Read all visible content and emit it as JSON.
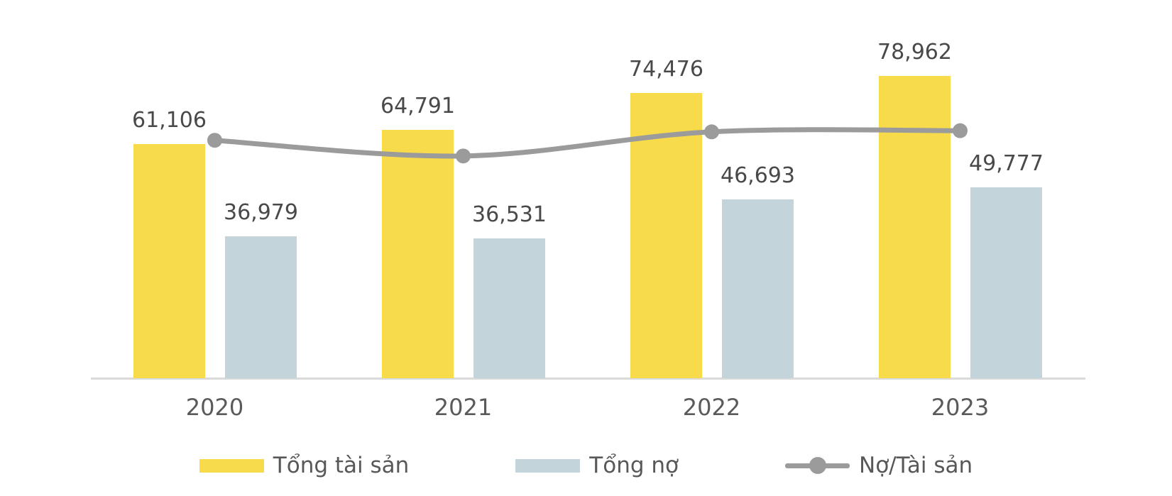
{
  "colors": {
    "assets_bar": "#F8DB4B",
    "debt_bar": "#C4D4DB",
    "ratio_line": "#9B9B9B",
    "axis_line": "#DADADA",
    "value_label_text": "#48494B",
    "tick_text": "#595A5C"
  },
  "chart_data": {
    "type": "bar",
    "subtype": "grouped-bar-with-line-overlay",
    "title": "",
    "xlabel": "",
    "ylabel": "",
    "categories": [
      "2020",
      "2021",
      "2022",
      "2023"
    ],
    "series": [
      {
        "name": "Tổng tài sản",
        "type": "bar",
        "color": "#F8DB4B",
        "values": [
          61106,
          64791,
          74476,
          78962
        ]
      },
      {
        "name": "Tổng nợ",
        "type": "bar",
        "color": "#C4D4DB",
        "values": [
          36979,
          36531,
          46693,
          49777
        ]
      },
      {
        "name": "Nợ/Tài sản",
        "type": "line",
        "color": "#9B9B9B",
        "values": [
          0.605,
          0.564,
          0.627,
          0.63
        ]
      }
    ],
    "data_labels": {
      "Tổng tài sản": [
        "61,106",
        "64,791",
        "74,476",
        "78,962"
      ],
      "Tổng nợ": [
        "36,979",
        "36,531",
        "46,693",
        "49,777"
      ]
    },
    "value_axis_visible": false,
    "gridlines": false,
    "ylim": [
      0,
      86000
    ],
    "legend_position": "bottom"
  }
}
